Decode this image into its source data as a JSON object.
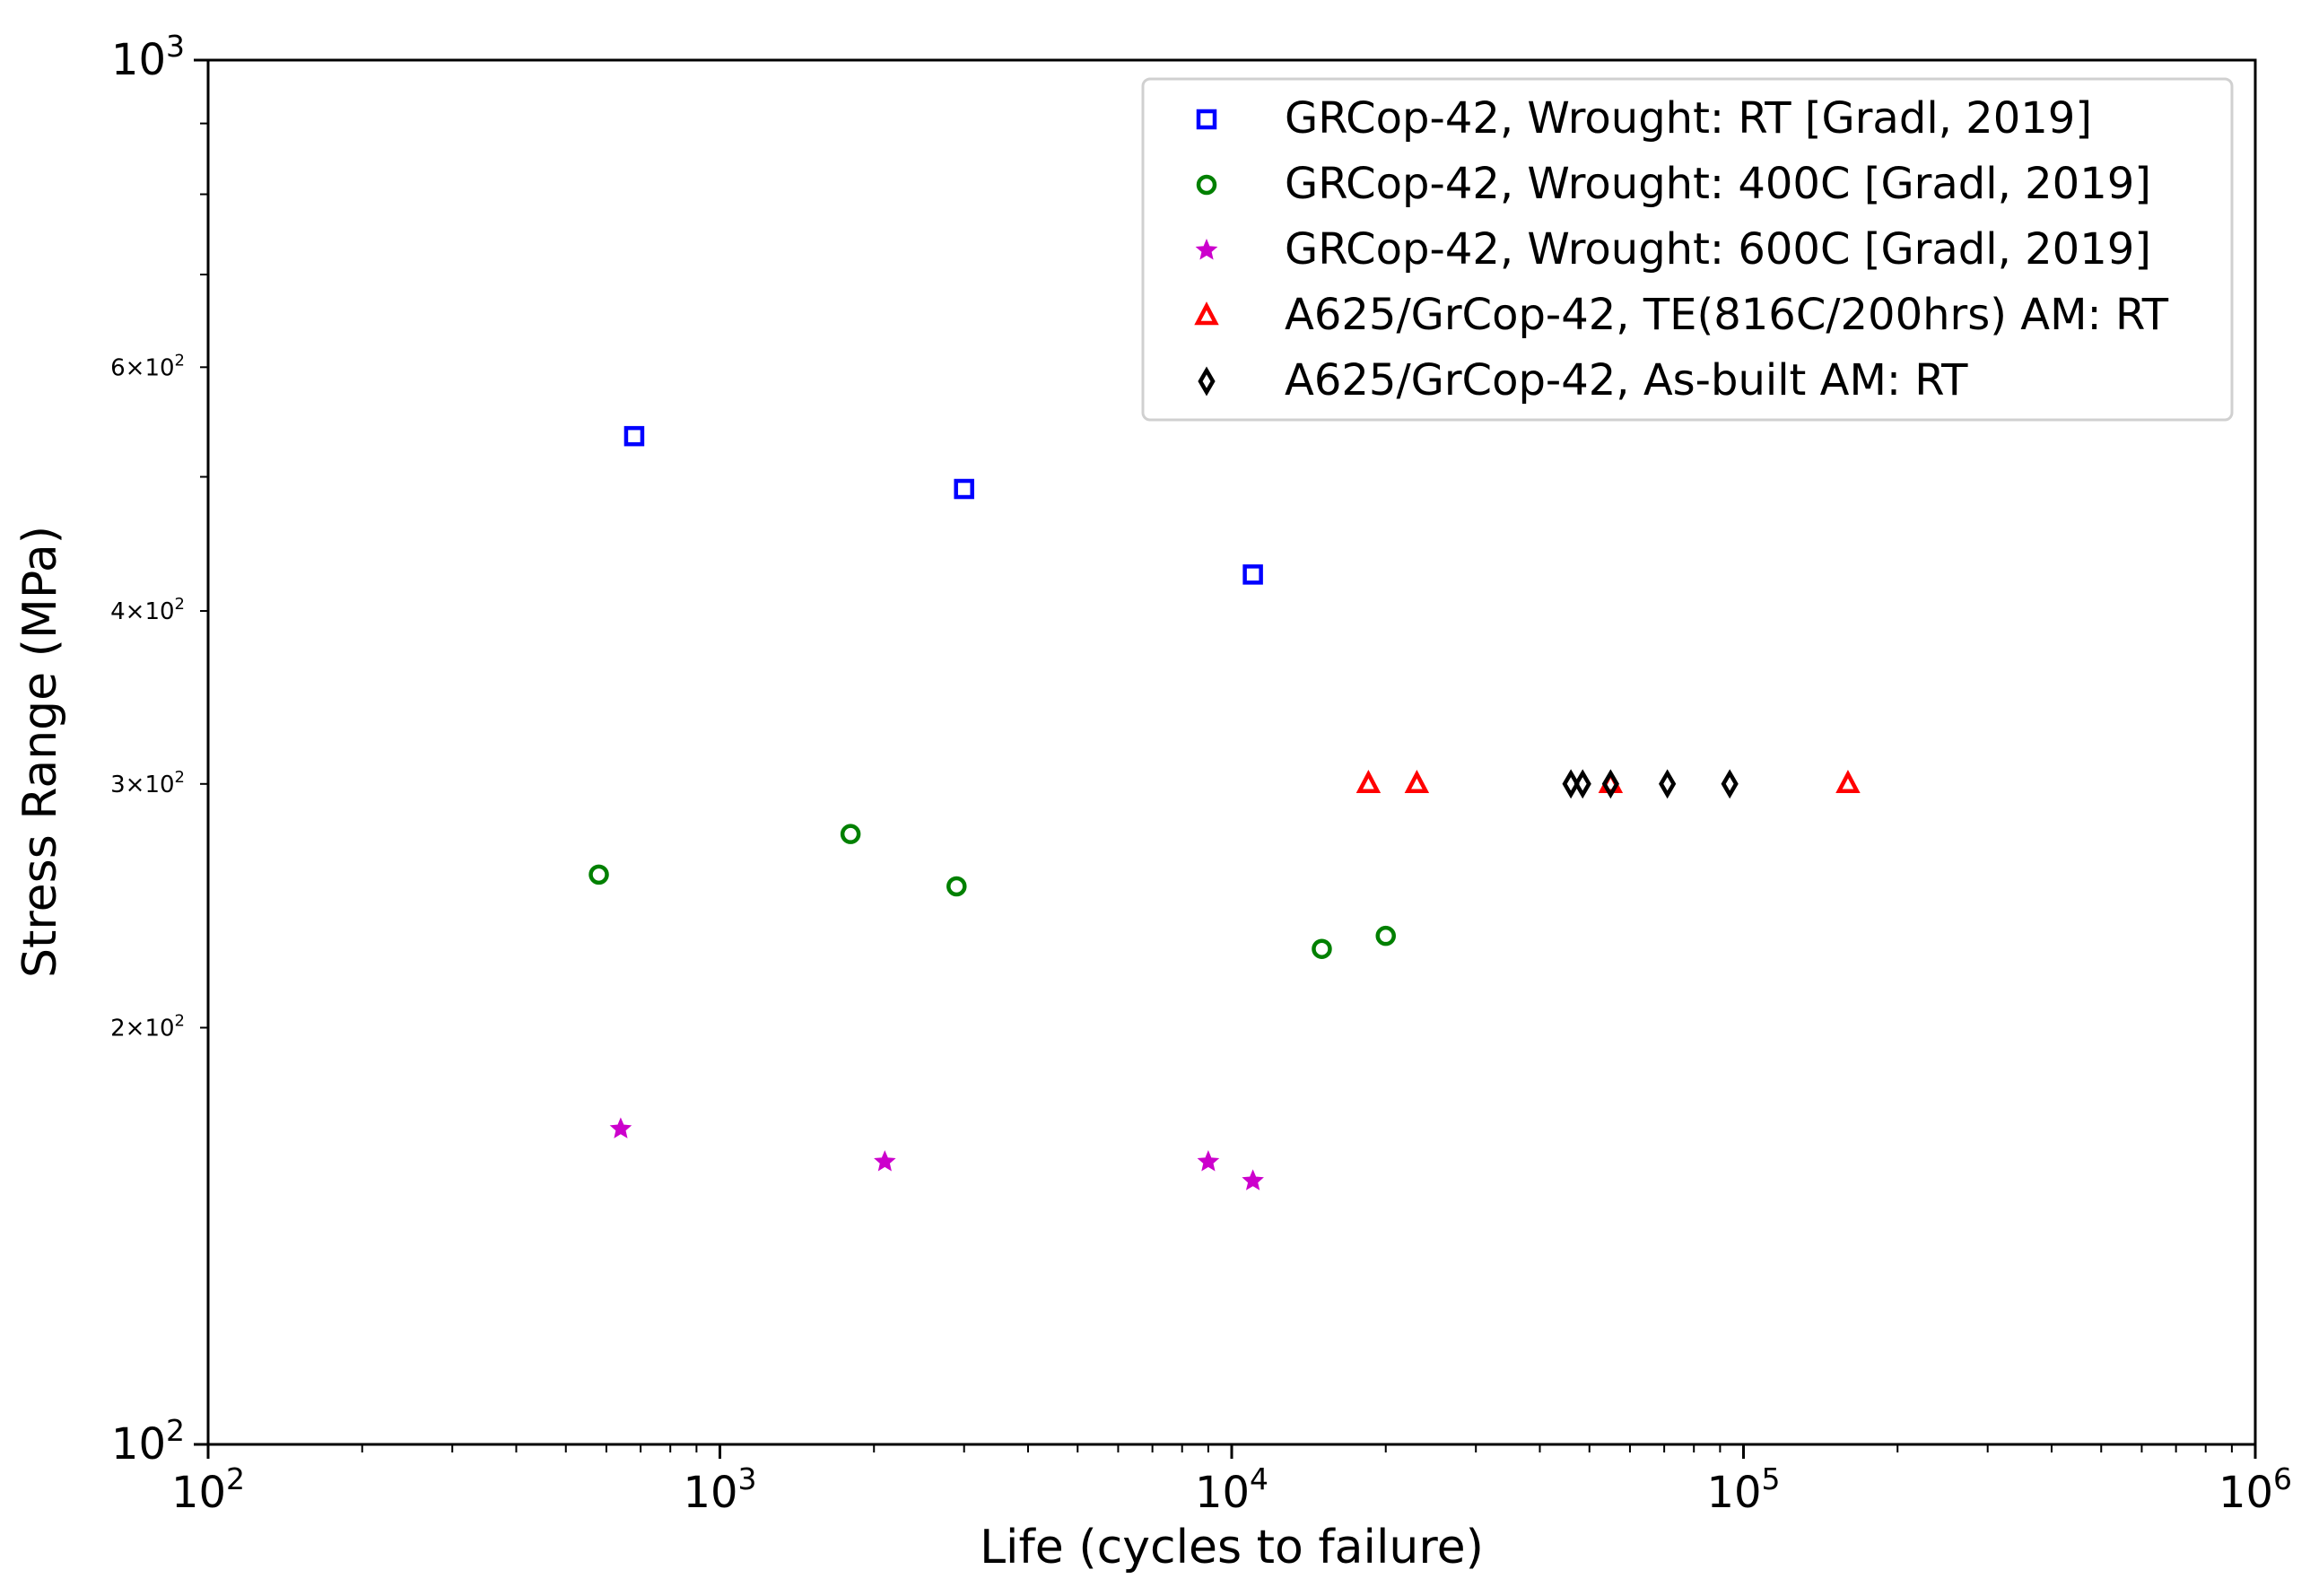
{
  "chart_data": {
    "type": "scatter",
    "title": "",
    "xlabel": "Life (cycles to failure)",
    "ylabel": "Stress Range (MPa)",
    "xscale": "log",
    "yscale": "log",
    "xlim": [
      100,
      1000000
    ],
    "ylim": [
      100,
      1000
    ],
    "legend_position": "top-right",
    "x_major_ticks": [
      {
        "value": 100,
        "base": "10",
        "exp": "2"
      },
      {
        "value": 1000,
        "base": "10",
        "exp": "3"
      },
      {
        "value": 10000,
        "base": "10",
        "exp": "4"
      },
      {
        "value": 100000,
        "base": "10",
        "exp": "5"
      },
      {
        "value": 1000000,
        "base": "10",
        "exp": "6"
      }
    ],
    "y_major_ticks": [
      {
        "value": 100,
        "base": "10",
        "exp": "2"
      },
      {
        "value": 1000,
        "base": "10",
        "exp": "3"
      }
    ],
    "y_minor_labels": [
      {
        "value": 200,
        "mant": "2",
        "base": "10",
        "exp": "2"
      },
      {
        "value": 300,
        "mant": "3",
        "base": "10",
        "exp": "2"
      },
      {
        "value": 400,
        "mant": "4",
        "base": "10",
        "exp": "2"
      },
      {
        "value": 600,
        "mant": "6",
        "base": "10",
        "exp": "2"
      }
    ],
    "series": [
      {
        "name": "GRCop-42, Wrought: RT [Gradl, 2019]",
        "marker": "square",
        "color": "#0000ff",
        "points": [
          [
            680,
            535
          ],
          [
            3000,
            490
          ],
          [
            11000,
            425
          ]
        ]
      },
      {
        "name": "GRCop-42, Wrought: 400C [Gradl, 2019]",
        "marker": "circle",
        "color": "#008000",
        "points": [
          [
            580,
            258
          ],
          [
            1800,
            276
          ],
          [
            2900,
            253
          ],
          [
            15000,
            228
          ],
          [
            20000,
            233
          ]
        ]
      },
      {
        "name": "GRCop-42, Wrought: 600C [Gradl, 2019]",
        "marker": "star",
        "color": "#cc00cc",
        "points": [
          [
            640,
            169
          ],
          [
            2100,
            160
          ],
          [
            9000,
            160
          ],
          [
            11000,
            155
          ]
        ]
      },
      {
        "name": "A625/GrCop-42, TE(816C/200hrs) AM: RT",
        "marker": "triangle",
        "color": "#ff0000",
        "points": [
          [
            18500,
            300
          ],
          [
            23000,
            300
          ],
          [
            55000,
            300
          ],
          [
            160000,
            300
          ]
        ]
      },
      {
        "name": "A625/GrCop-42, As-built AM: RT",
        "marker": "diamond",
        "color": "#000000",
        "points": [
          [
            46000,
            300
          ],
          [
            48500,
            300
          ],
          [
            55000,
            300
          ],
          [
            71000,
            300
          ],
          [
            94000,
            300
          ]
        ]
      }
    ]
  }
}
